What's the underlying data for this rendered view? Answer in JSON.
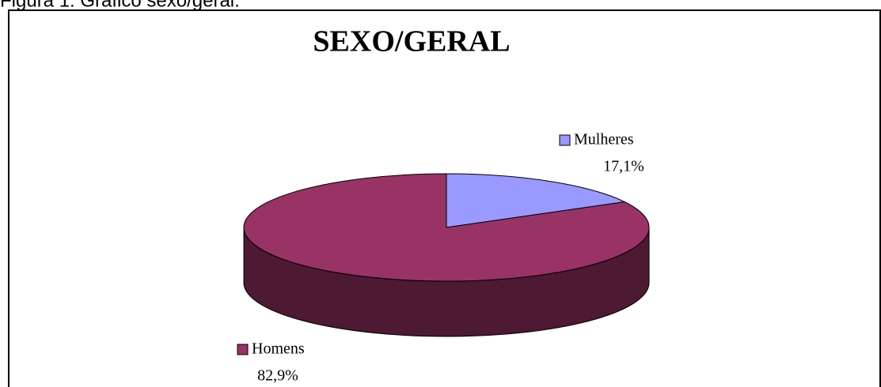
{
  "caption": "Figura 1: Gráfico sexo/geral.",
  "chart_data": {
    "type": "pie",
    "title": "SEXO/GERAL",
    "categories": [
      "Mulheres",
      "Homens"
    ],
    "values": [
      17.1,
      82.9
    ],
    "value_labels": [
      "17,1%",
      "82,9%"
    ],
    "colors": [
      "#9999ff",
      "#993366"
    ],
    "side_colors": [
      "#4d4d80",
      "#4d1933"
    ]
  }
}
